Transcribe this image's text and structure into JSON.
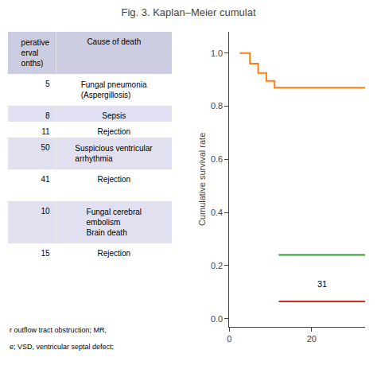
{
  "chart_data": [
    {
      "type": "table",
      "header": {
        "values": [
          "perative\nerval\nonths)",
          "Cause of death"
        ],
        "color": "#cccce0"
      },
      "rows": [
        [
          "5",
          "Fungal pneumonia\n(Aspergillosis)"
        ],
        [
          "8",
          "Sepsis"
        ],
        [
          "11",
          "Rejection"
        ],
        [
          "50",
          "Suspicious ventricular\narrhythmia"
        ],
        [
          "41",
          "Rejection"
        ],
        [
          null,
          null
        ],
        [
          "10",
          "Fungal cerebral\nembolism\nBrain death"
        ],
        [
          "15",
          "Rejection"
        ]
      ],
      "colors": [
        "#ffffff",
        "#e0e0f0",
        "#ffffff",
        "#e0e0f0",
        "#ffffff",
        "#ffffff",
        "#e0e0f0",
        "#ffffff"
      ],
      "annotations": [
        "r outflow tract obstruction; MR,",
        "e; VSD, ventricular septal defect;"
      ]
    },
    {
      "type": "line",
      "title": "Fig. 3. Kaplan–Meier cumulat",
      "ylabel": "Cumulative survival rate",
      "xlim": [
        0,
        33
      ],
      "xticks": [
        0,
        20
      ],
      "ylim": [
        -0.03,
        1.08
      ],
      "yticks": [
        {
          "value": 0,
          "label": "0.0"
        },
        0.2,
        0.4,
        0.6,
        0.8,
        {
          "value": 1,
          "label": "1.0"
        }
      ],
      "grid": false,
      "series": [
        {
          "x": [
            2.5,
            5,
            5,
            7,
            7,
            9,
            9,
            11,
            11,
            33
          ],
          "values": [
            1.0,
            1.0,
            0.96,
            0.96,
            0.925,
            0.925,
            0.895,
            0.895,
            0.87,
            0.87
          ]
        },
        {
          "x": [
            12,
            33
          ],
          "values": [
            0.24,
            0.24
          ]
        },
        {
          "x": [
            12,
            33
          ],
          "values": [
            0.065,
            0.065
          ]
        }
      ],
      "annotations": [
        {
          "text": "31",
          "x": 21,
          "y": 0.13
        }
      ]
    }
  ]
}
